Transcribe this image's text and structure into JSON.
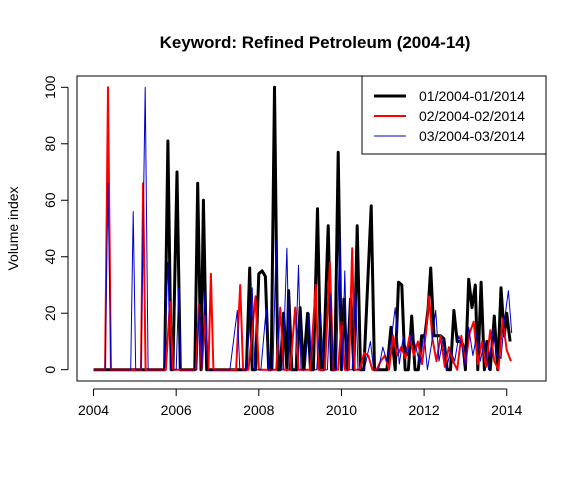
{
  "chart_data": {
    "type": "line",
    "title": "Keyword: Refined Petroleum (2004-14)",
    "xlabel": "",
    "ylabel": "Volume index",
    "xlim": [
      2003.6,
      2014.95
    ],
    "ylim": [
      -4,
      104
    ],
    "x_ticks": [
      "2004",
      "2006",
      "2008",
      "2010",
      "2012",
      "2014"
    ],
    "y_ticks": [
      "0",
      "20",
      "40",
      "60",
      "80",
      "100"
    ],
    "legend_position": "top-right",
    "series": [
      {
        "name": "01/2004-01/2014",
        "color": "#000000",
        "points": [
          [
            2004.0,
            0
          ],
          [
            2004.2,
            0
          ],
          [
            2004.4,
            0
          ],
          [
            2004.6,
            0
          ],
          [
            2004.8,
            0
          ],
          [
            2005.0,
            0
          ],
          [
            2005.2,
            0
          ],
          [
            2005.4,
            0
          ],
          [
            2005.6,
            0
          ],
          [
            2005.72,
            0
          ],
          [
            2005.8,
            81
          ],
          [
            2005.88,
            0
          ],
          [
            2005.92,
            0
          ],
          [
            2006.02,
            70
          ],
          [
            2006.1,
            0
          ],
          [
            2006.3,
            0
          ],
          [
            2006.45,
            0
          ],
          [
            2006.52,
            66
          ],
          [
            2006.6,
            0
          ],
          [
            2006.66,
            60
          ],
          [
            2006.74,
            0
          ],
          [
            2006.9,
            0
          ],
          [
            2007.1,
            0
          ],
          [
            2007.3,
            0
          ],
          [
            2007.5,
            0
          ],
          [
            2007.7,
            0
          ],
          [
            2007.78,
            36
          ],
          [
            2007.84,
            0
          ],
          [
            2007.92,
            0
          ],
          [
            2008.0,
            34
          ],
          [
            2008.08,
            35
          ],
          [
            2008.16,
            33
          ],
          [
            2008.24,
            0
          ],
          [
            2008.3,
            0
          ],
          [
            2008.38,
            100
          ],
          [
            2008.46,
            0
          ],
          [
            2008.52,
            0
          ],
          [
            2008.6,
            20
          ],
          [
            2008.68,
            0
          ],
          [
            2008.72,
            28
          ],
          [
            2008.8,
            0
          ],
          [
            2008.92,
            0
          ],
          [
            2009.0,
            22
          ],
          [
            2009.08,
            0
          ],
          [
            2009.18,
            20
          ],
          [
            2009.25,
            0
          ],
          [
            2009.32,
            0
          ],
          [
            2009.42,
            57
          ],
          [
            2009.5,
            0
          ],
          [
            2009.56,
            0
          ],
          [
            2009.68,
            51
          ],
          [
            2009.76,
            0
          ],
          [
            2009.84,
            0
          ],
          [
            2009.92,
            77
          ],
          [
            2010.0,
            0
          ],
          [
            2010.06,
            25
          ],
          [
            2010.14,
            0
          ],
          [
            2010.22,
            25
          ],
          [
            2010.3,
            0
          ],
          [
            2010.38,
            51
          ],
          [
            2010.46,
            0
          ],
          [
            2010.54,
            0
          ],
          [
            2010.72,
            58
          ],
          [
            2010.8,
            0
          ],
          [
            2010.9,
            0
          ],
          [
            2011.0,
            0
          ],
          [
            2011.1,
            0
          ],
          [
            2011.2,
            15
          ],
          [
            2011.3,
            0
          ],
          [
            2011.38,
            31
          ],
          [
            2011.46,
            30
          ],
          [
            2011.54,
            0
          ],
          [
            2011.62,
            0
          ],
          [
            2011.7,
            19
          ],
          [
            2011.78,
            0
          ],
          [
            2011.86,
            0
          ],
          [
            2011.94,
            12
          ],
          [
            2012.02,
            12
          ],
          [
            2012.1,
            22
          ],
          [
            2012.16,
            36
          ],
          [
            2012.24,
            12
          ],
          [
            2012.32,
            12
          ],
          [
            2012.4,
            12
          ],
          [
            2012.48,
            11
          ],
          [
            2012.56,
            0
          ],
          [
            2012.64,
            0
          ],
          [
            2012.72,
            21
          ],
          [
            2012.8,
            10
          ],
          [
            2012.88,
            10
          ],
          [
            2012.94,
            9
          ],
          [
            2013.0,
            0
          ],
          [
            2013.08,
            32
          ],
          [
            2013.16,
            22
          ],
          [
            2013.24,
            30
          ],
          [
            2013.3,
            0
          ],
          [
            2013.38,
            31
          ],
          [
            2013.46,
            0
          ],
          [
            2013.52,
            10
          ],
          [
            2013.6,
            0
          ],
          [
            2013.7,
            19
          ],
          [
            2013.78,
            0
          ],
          [
            2013.86,
            29
          ],
          [
            2013.94,
            12
          ],
          [
            2014.0,
            20
          ],
          [
            2014.08,
            10
          ]
        ]
      },
      {
        "name": "02/2004-02/2014",
        "color": "#ff0000",
        "points": [
          [
            2004.0,
            0
          ],
          [
            2004.2,
            0
          ],
          [
            2004.28,
            0
          ],
          [
            2004.35,
            100
          ],
          [
            2004.42,
            0
          ],
          [
            2004.6,
            0
          ],
          [
            2004.8,
            0
          ],
          [
            2005.0,
            0
          ],
          [
            2005.15,
            0
          ],
          [
            2005.2,
            66
          ],
          [
            2005.26,
            0
          ],
          [
            2005.4,
            0
          ],
          [
            2005.6,
            0
          ],
          [
            2005.75,
            0
          ],
          [
            2005.85,
            24
          ],
          [
            2005.92,
            0
          ],
          [
            2006.1,
            0
          ],
          [
            2006.3,
            0
          ],
          [
            2006.48,
            0
          ],
          [
            2006.55,
            23
          ],
          [
            2006.62,
            0
          ],
          [
            2006.7,
            19
          ],
          [
            2006.78,
            0
          ],
          [
            2006.84,
            34
          ],
          [
            2006.9,
            0
          ],
          [
            2007.1,
            0
          ],
          [
            2007.3,
            0
          ],
          [
            2007.45,
            0
          ],
          [
            2007.55,
            30
          ],
          [
            2007.62,
            0
          ],
          [
            2007.75,
            0
          ],
          [
            2007.92,
            26
          ],
          [
            2008.0,
            0
          ],
          [
            2008.1,
            0
          ],
          [
            2008.2,
            0
          ],
          [
            2008.3,
            0
          ],
          [
            2008.42,
            0
          ],
          [
            2008.52,
            22
          ],
          [
            2008.6,
            0
          ],
          [
            2008.76,
            0
          ],
          [
            2008.88,
            22
          ],
          [
            2008.96,
            0
          ],
          [
            2009.1,
            0
          ],
          [
            2009.24,
            0
          ],
          [
            2009.38,
            30
          ],
          [
            2009.44,
            0
          ],
          [
            2009.6,
            0
          ],
          [
            2009.72,
            38
          ],
          [
            2009.8,
            0
          ],
          [
            2009.92,
            0
          ],
          [
            2010.0,
            17
          ],
          [
            2010.08,
            0
          ],
          [
            2010.18,
            0
          ],
          [
            2010.26,
            43
          ],
          [
            2010.32,
            0
          ],
          [
            2010.44,
            0
          ],
          [
            2010.55,
            6
          ],
          [
            2010.65,
            5
          ],
          [
            2010.75,
            0
          ],
          [
            2010.85,
            0
          ],
          [
            2010.95,
            3
          ],
          [
            2011.05,
            5
          ],
          [
            2011.15,
            0
          ],
          [
            2011.25,
            12
          ],
          [
            2011.35,
            5
          ],
          [
            2011.45,
            8
          ],
          [
            2011.55,
            4
          ],
          [
            2011.65,
            12
          ],
          [
            2011.75,
            5
          ],
          [
            2011.85,
            10
          ],
          [
            2011.95,
            2
          ],
          [
            2012.05,
            14
          ],
          [
            2012.12,
            26
          ],
          [
            2012.2,
            11
          ],
          [
            2012.3,
            3
          ],
          [
            2012.4,
            12
          ],
          [
            2012.5,
            1
          ],
          [
            2012.6,
            8
          ],
          [
            2012.7,
            3
          ],
          [
            2012.8,
            0
          ],
          [
            2012.9,
            12
          ],
          [
            2013.0,
            2
          ],
          [
            2013.1,
            13
          ],
          [
            2013.2,
            17
          ],
          [
            2013.3,
            2
          ],
          [
            2013.4,
            10
          ],
          [
            2013.5,
            1
          ],
          [
            2013.6,
            14
          ],
          [
            2013.7,
            3
          ],
          [
            2013.8,
            0
          ],
          [
            2013.9,
            18
          ],
          [
            2014.0,
            7
          ],
          [
            2014.1,
            3
          ]
        ]
      },
      {
        "name": "03/2004-03/2014",
        "color": "#0000cc",
        "points": [
          [
            2004.0,
            0
          ],
          [
            2004.15,
            0
          ],
          [
            2004.28,
            0
          ],
          [
            2004.35,
            66
          ],
          [
            2004.42,
            0
          ],
          [
            2004.6,
            0
          ],
          [
            2004.8,
            0
          ],
          [
            2004.9,
            0
          ],
          [
            2004.96,
            56
          ],
          [
            2005.02,
            0
          ],
          [
            2005.15,
            0
          ],
          [
            2005.25,
            100
          ],
          [
            2005.32,
            0
          ],
          [
            2005.5,
            0
          ],
          [
            2005.7,
            0
          ],
          [
            2005.8,
            38
          ],
          [
            2005.86,
            0
          ],
          [
            2006.0,
            0
          ],
          [
            2006.06,
            29
          ],
          [
            2006.12,
            0
          ],
          [
            2006.3,
            0
          ],
          [
            2006.5,
            0
          ],
          [
            2006.56,
            23
          ],
          [
            2006.62,
            0
          ],
          [
            2006.7,
            28
          ],
          [
            2006.76,
            0
          ],
          [
            2006.9,
            0
          ],
          [
            2007.1,
            0
          ],
          [
            2007.3,
            0
          ],
          [
            2007.48,
            21
          ],
          [
            2007.54,
            0
          ],
          [
            2007.7,
            0
          ],
          [
            2007.84,
            29
          ],
          [
            2007.9,
            0
          ],
          [
            2008.05,
            0
          ],
          [
            2008.18,
            22
          ],
          [
            2008.24,
            0
          ],
          [
            2008.34,
            0
          ],
          [
            2008.42,
            46
          ],
          [
            2008.5,
            0
          ],
          [
            2008.58,
            0
          ],
          [
            2008.68,
            43
          ],
          [
            2008.74,
            0
          ],
          [
            2008.88,
            0
          ],
          [
            2008.96,
            37
          ],
          [
            2009.02,
            0
          ],
          [
            2009.12,
            0
          ],
          [
            2009.22,
            20
          ],
          [
            2009.28,
            0
          ],
          [
            2009.4,
            0
          ],
          [
            2009.5,
            20
          ],
          [
            2009.56,
            0
          ],
          [
            2009.66,
            0
          ],
          [
            2009.74,
            27
          ],
          [
            2009.8,
            0
          ],
          [
            2009.88,
            0
          ],
          [
            2009.96,
            48
          ],
          [
            2010.02,
            0
          ],
          [
            2010.08,
            35
          ],
          [
            2010.14,
            0
          ],
          [
            2010.26,
            0
          ],
          [
            2010.34,
            30
          ],
          [
            2010.4,
            0
          ],
          [
            2010.55,
            0
          ],
          [
            2010.7,
            10
          ],
          [
            2010.78,
            0
          ],
          [
            2010.9,
            0
          ],
          [
            2011.0,
            8
          ],
          [
            2011.1,
            3
          ],
          [
            2011.2,
            10
          ],
          [
            2011.3,
            22
          ],
          [
            2011.4,
            2
          ],
          [
            2011.5,
            12
          ],
          [
            2011.6,
            5
          ],
          [
            2011.7,
            13
          ],
          [
            2011.8,
            8
          ],
          [
            2011.9,
            2
          ],
          [
            2012.0,
            13
          ],
          [
            2012.08,
            0
          ],
          [
            2012.18,
            9
          ],
          [
            2012.28,
            21
          ],
          [
            2012.36,
            3
          ],
          [
            2012.46,
            11
          ],
          [
            2012.54,
            0
          ],
          [
            2012.64,
            7
          ],
          [
            2012.74,
            3
          ],
          [
            2012.84,
            12
          ],
          [
            2012.92,
            8
          ],
          [
            2013.0,
            1
          ],
          [
            2013.08,
            15
          ],
          [
            2013.18,
            5
          ],
          [
            2013.28,
            13
          ],
          [
            2013.36,
            3
          ],
          [
            2013.46,
            10
          ],
          [
            2013.56,
            0
          ],
          [
            2013.66,
            14
          ],
          [
            2013.76,
            5
          ],
          [
            2013.86,
            4
          ],
          [
            2013.94,
            17
          ],
          [
            2014.04,
            28
          ],
          [
            2014.12,
            13
          ]
        ]
      }
    ]
  }
}
